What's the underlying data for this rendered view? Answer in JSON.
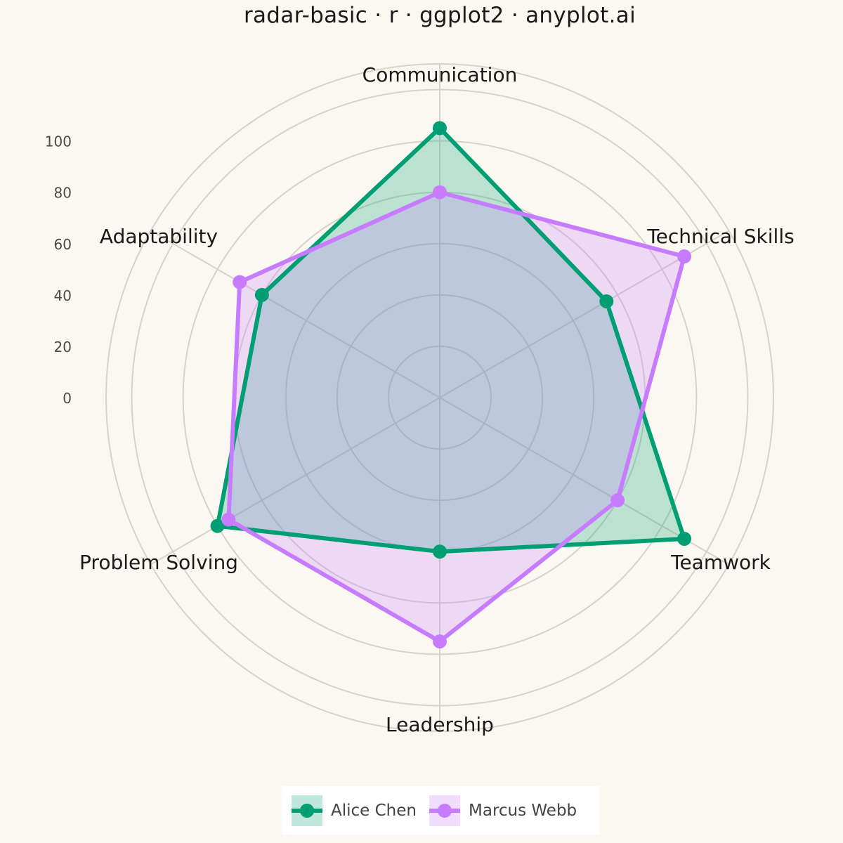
{
  "title": "radar-basic · r · ggplot2 · anyplot.ai",
  "colors": {
    "background": "#FAF8F1",
    "grid": "#D6D3CC",
    "axis_text": "#4a4a4a",
    "category_text": "#1a1a1a"
  },
  "chart_data": {
    "type": "radar",
    "title": "radar-basic · r · ggplot2 · anyplot.ai",
    "categories": [
      "Communication",
      "Technical Skills",
      "Teamwork",
      "Leadership",
      "Problem Solving",
      "Adaptability"
    ],
    "radial_ticks": [
      0,
      20,
      40,
      60,
      80,
      100
    ],
    "rlim": [
      -20,
      110
    ],
    "grid": true,
    "legend_position": "bottom",
    "series": [
      {
        "name": "Alice Chen",
        "color": "#009E73",
        "values": [
          85,
          55,
          90,
          40,
          80,
          60
        ]
      },
      {
        "name": "Marcus Webb",
        "color": "#C77CFF",
        "values": [
          60,
          90,
          60,
          75,
          75,
          70
        ]
      }
    ]
  }
}
